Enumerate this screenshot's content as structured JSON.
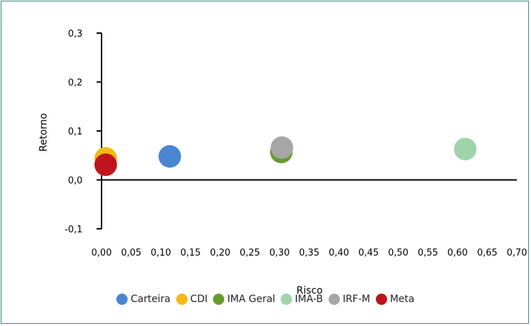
{
  "chart_data": {
    "type": "scatter",
    "xlabel": "Risco",
    "ylabel": "Retorno",
    "xlim": [
      0.0,
      0.7
    ],
    "ylim": [
      -0.1,
      0.3
    ],
    "xticks": [
      "0,00",
      "0,05",
      "0,10",
      "0,15",
      "0,20",
      "0,25",
      "0,30",
      "0,35",
      "0,40",
      "0,45",
      "0,50",
      "0,55",
      "0,60",
      "0,65",
      "0,70"
    ],
    "yticks": [
      "-0,1",
      "0,0",
      "0,1",
      "0,2",
      "0,3"
    ],
    "grid": false,
    "legend_position": "bottom",
    "series": [
      {
        "name": "Carteira",
        "color": "#4a86d0",
        "x": [
          0.115
        ],
        "y": [
          0.048
        ]
      },
      {
        "name": "CDI",
        "color": "#f5b914",
        "x": [
          0.007
        ],
        "y": [
          0.044
        ]
      },
      {
        "name": "IMA Geral",
        "color": "#6a9a2e",
        "x": [
          0.303
        ],
        "y": [
          0.057
        ]
      },
      {
        "name": "IMA-B",
        "color": "#9fd4aa",
        "x": [
          0.613
        ],
        "y": [
          0.063
        ]
      },
      {
        "name": "IRF-M",
        "color": "#a6a6a6",
        "x": [
          0.304
        ],
        "y": [
          0.066
        ]
      },
      {
        "name": "Meta",
        "color": "#c0141c",
        "x": [
          0.007
        ],
        "y": [
          0.031
        ]
      }
    ]
  }
}
